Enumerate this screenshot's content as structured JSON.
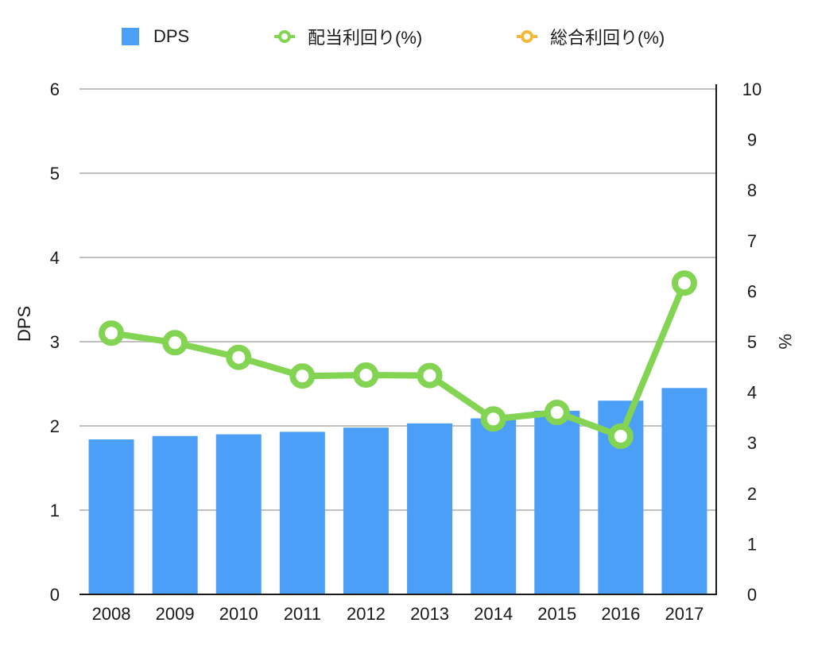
{
  "chart_data": {
    "type": "bar+line",
    "title": "",
    "categories": [
      "2008",
      "2009",
      "2010",
      "2011",
      "2012",
      "2013",
      "2014",
      "2015",
      "2016",
      "2017"
    ],
    "series": [
      {
        "name": "DPS",
        "type": "bar",
        "axis": "left",
        "color": "#4c9ff7",
        "values": [
          1.84,
          1.88,
          1.9,
          1.93,
          1.98,
          2.03,
          2.09,
          2.18,
          2.3,
          2.45
        ]
      },
      {
        "name": "配当利回り(%)",
        "type": "line",
        "axis": "right",
        "color": "#84d453",
        "values": [
          5.17,
          4.98,
          4.69,
          4.32,
          4.34,
          4.33,
          3.47,
          3.6,
          3.13,
          6.16
        ]
      },
      {
        "name": "総合利回り(%)",
        "type": "line",
        "axis": "right",
        "color": "#f0b93b",
        "values": []
      }
    ],
    "xlabel": "",
    "ylabel": "DPS",
    "ylabel_right": "%",
    "ylim": [
      0,
      6
    ],
    "ylim_right": [
      0,
      10
    ],
    "yticks": [
      "0",
      "1",
      "2",
      "3",
      "4",
      "5",
      "6"
    ],
    "yticks_right": [
      "0",
      "1",
      "2",
      "3",
      "4",
      "5",
      "6",
      "7",
      "8",
      "9",
      "10"
    ],
    "grid": true,
    "legend_position": "top"
  },
  "legend": {
    "items": [
      {
        "label": "DPS",
        "color": "#4c9ff7"
      },
      {
        "label": "配当利回り(%)",
        "color": "#84d453"
      },
      {
        "label": "総合利回り(%)",
        "color": "#f0b93b"
      }
    ]
  },
  "axes": {
    "left_title": "DPS",
    "right_title": "%"
  }
}
